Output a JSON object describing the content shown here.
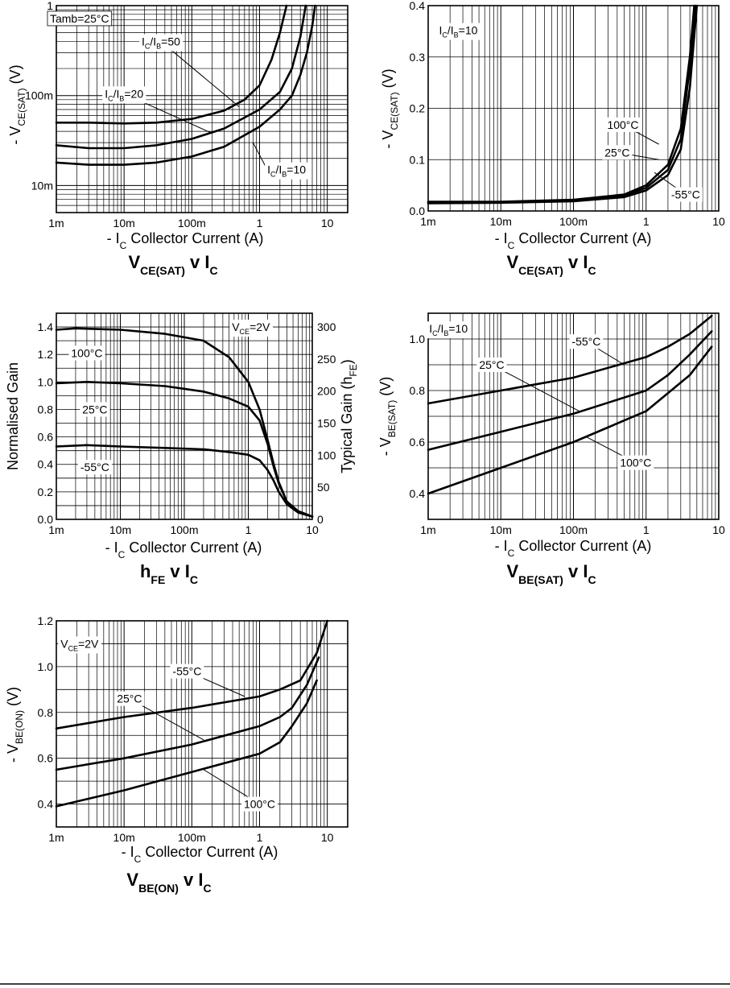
{
  "page": {
    "background": "#ffffff",
    "ink": "#000000"
  },
  "chart_data": [
    {
      "id": "c1",
      "type": "line",
      "title_main": "V",
      "title_sub": "CE(SAT)",
      "title_tail": "v I",
      "title_tail_sub": "C",
      "xlabel_prefix": "- I",
      "xlabel_sub": "C",
      "xlabel_text": "Collector Current (A)",
      "ylabel_prefix": "- V",
      "ylabel_sub": "CE(SAT)",
      "ylabel_text": "(V)",
      "x_scale": "log",
      "xlim": [
        0.001,
        20
      ],
      "y_scale": "log",
      "ylim": [
        0.005,
        1
      ],
      "x_ticks": [
        {
          "v": 0.001,
          "t": "1m"
        },
        {
          "v": 0.01,
          "t": "10m"
        },
        {
          "v": 0.1,
          "t": "100m"
        },
        {
          "v": 1,
          "t": "1"
        },
        {
          "v": 10,
          "t": "10"
        }
      ],
      "y_ticks": [
        {
          "v": 0.01,
          "t": "10m"
        },
        {
          "v": 0.1,
          "t": "100m"
        },
        {
          "v": 1,
          "t": "1"
        }
      ],
      "grid": true,
      "series": [
        {
          "name": "I/=50",
          "x": [
            0.001,
            0.003,
            0.01,
            0.03,
            0.1,
            0.3,
            0.6,
            1,
            1.5,
            2,
            2.5
          ],
          "y": [
            0.05,
            0.05,
            0.049,
            0.05,
            0.055,
            0.068,
            0.09,
            0.13,
            0.25,
            0.5,
            1.0
          ]
        },
        {
          "name": "I/=20",
          "x": [
            0.001,
            0.003,
            0.01,
            0.03,
            0.1,
            0.3,
            1,
            2,
            3,
            4,
            4.8
          ],
          "y": [
            0.028,
            0.026,
            0.026,
            0.028,
            0.033,
            0.043,
            0.07,
            0.11,
            0.2,
            0.45,
            1.0
          ]
        },
        {
          "name": "I/=10",
          "x": [
            0.001,
            0.003,
            0.01,
            0.03,
            0.1,
            0.3,
            1,
            2,
            3,
            4,
            5,
            6,
            6.6
          ],
          "y": [
            0.018,
            0.017,
            0.017,
            0.018,
            0.021,
            0.027,
            0.045,
            0.07,
            0.1,
            0.17,
            0.3,
            0.6,
            1.0
          ]
        }
      ],
      "annotations": [
        {
          "kind": "box",
          "text": "Tamb=25°C",
          "at": [
            0.0022,
            0.72
          ]
        },
        {
          "kind": "ratio",
          "a": "C",
          "b": "B",
          "val": "=50",
          "at": [
            0.035,
            0.4
          ],
          "to": [
            0.5,
            0.075
          ]
        },
        {
          "kind": "ratio",
          "a": "C",
          "b": "B",
          "val": "=20",
          "at": [
            0.01,
            0.105
          ],
          "to": [
            0.2,
            0.038
          ]
        },
        {
          "kind": "ratio",
          "a": "C",
          "b": "B",
          "val": "=10",
          "at": [
            1.3,
            0.015
          ],
          "to": [
            0.8,
            0.03
          ],
          "anchor": "start"
        }
      ]
    },
    {
      "id": "c2",
      "type": "line",
      "title_main": "V",
      "title_sub": "CE(SAT)",
      "title_tail": "v I",
      "title_tail_sub": "C",
      "xlabel_prefix": "- I",
      "xlabel_sub": "C",
      "xlabel_text": "Collector Current (A)",
      "ylabel_prefix": "- V",
      "ylabel_sub": "CE(SAT)",
      "ylabel_text": "(V)",
      "x_scale": "log",
      "xlim": [
        0.001,
        10
      ],
      "y_scale": "linear",
      "ylim": [
        0,
        0.4
      ],
      "x_ticks": [
        {
          "v": 0.001,
          "t": "1m"
        },
        {
          "v": 0.01,
          "t": "10m"
        },
        {
          "v": 0.1,
          "t": "100m"
        },
        {
          "v": 1,
          "t": "1"
        },
        {
          "v": 10,
          "t": "10"
        }
      ],
      "y_ticks": [
        {
          "v": 0,
          "t": "0.0"
        },
        {
          "v": 0.1,
          "t": "0.1"
        },
        {
          "v": 0.2,
          "t": "0.2"
        },
        {
          "v": 0.3,
          "t": "0.3"
        },
        {
          "v": 0.4,
          "t": "0.4"
        }
      ],
      "y_minor": [],
      "grid": true,
      "series": [
        {
          "name": "100°C",
          "x": [
            0.001,
            0.01,
            0.1,
            0.5,
            1,
            2,
            3,
            4,
            4.6
          ],
          "y": [
            0.018,
            0.018,
            0.022,
            0.032,
            0.05,
            0.09,
            0.16,
            0.3,
            0.4
          ]
        },
        {
          "name": "25°C",
          "x": [
            0.001,
            0.01,
            0.1,
            0.5,
            1,
            2,
            3,
            4,
            4.8
          ],
          "y": [
            0.017,
            0.017,
            0.021,
            0.03,
            0.045,
            0.08,
            0.14,
            0.28,
            0.4
          ]
        },
        {
          "name": "-55°C",
          "x": [
            0.001,
            0.01,
            0.1,
            0.5,
            1,
            2,
            3,
            4,
            5
          ],
          "y": [
            0.015,
            0.016,
            0.019,
            0.027,
            0.04,
            0.07,
            0.12,
            0.24,
            0.4
          ]
        }
      ],
      "annotations": [
        {
          "kind": "ratio",
          "a": "C",
          "b": "B",
          "val": "=10",
          "at": [
            0.0026,
            0.352
          ]
        },
        {
          "kind": "text",
          "text": "100°C",
          "at": [
            0.48,
            0.168
          ],
          "to": [
            1.5,
            0.13
          ]
        },
        {
          "kind": "text",
          "text": "25°C",
          "at": [
            0.4,
            0.114
          ],
          "to": [
            1.5,
            0.1
          ]
        },
        {
          "kind": "text",
          "text": "-55°C",
          "at": [
            3.5,
            0.032
          ],
          "to": [
            1.3,
            0.075
          ]
        }
      ]
    },
    {
      "id": "c3",
      "type": "line",
      "title_main": "h",
      "title_sub": "FE",
      "title_tail": "v I",
      "title_tail_sub": "C",
      "xlabel_prefix": "- I",
      "xlabel_sub": "C",
      "xlabel_text": "Collector Current (A)",
      "ylabel_text": "Normalised Gain",
      "y2label_prefix": "Typical Gain (h",
      "y2label_sub": "FE",
      "y2label_suffix": ")",
      "x_scale": "log",
      "xlim": [
        0.001,
        10
      ],
      "y_scale": "linear",
      "ylim": [
        0,
        1.5
      ],
      "y2lim": [
        0,
        321.4
      ],
      "x_ticks": [
        {
          "v": 0.001,
          "t": "1m"
        },
        {
          "v": 0.01,
          "t": "10m"
        },
        {
          "v": 0.1,
          "t": "100m"
        },
        {
          "v": 1,
          "t": "1"
        },
        {
          "v": 10,
          "t": "10"
        }
      ],
      "y_ticks": [
        {
          "v": 0,
          "t": "0.0"
        },
        {
          "v": 0.2,
          "t": "0.2"
        },
        {
          "v": 0.4,
          "t": "0.4"
        },
        {
          "v": 0.6,
          "t": "0.6"
        },
        {
          "v": 0.8,
          "t": "0.8"
        },
        {
          "v": 1.0,
          "t": "1.0"
        },
        {
          "v": 1.2,
          "t": "1.2"
        },
        {
          "v": 1.4,
          "t": "1.4"
        }
      ],
      "y2_ticks": [
        {
          "v": 0,
          "t": "0"
        },
        {
          "v": 50,
          "t": "50"
        },
        {
          "v": 100,
          "t": "100"
        },
        {
          "v": 150,
          "t": "150"
        },
        {
          "v": 200,
          "t": "200"
        },
        {
          "v": 250,
          "t": "250"
        },
        {
          "v": 300,
          "t": "300"
        }
      ],
      "y_minor_step": 0.1,
      "grid": true,
      "series": [
        {
          "name": "100°C",
          "x": [
            0.001,
            0.002,
            0.01,
            0.05,
            0.2,
            0.5,
            1,
            1.5,
            2,
            2.5,
            3,
            4,
            6,
            10
          ],
          "y": [
            1.38,
            1.39,
            1.38,
            1.35,
            1.3,
            1.18,
            1.0,
            0.8,
            0.58,
            0.4,
            0.27,
            0.13,
            0.06,
            0.02
          ]
        },
        {
          "name": "25°C",
          "x": [
            0.001,
            0.003,
            0.01,
            0.05,
            0.2,
            0.5,
            1,
            1.5,
            2,
            2.5,
            3,
            4,
            6,
            10
          ],
          "y": [
            0.99,
            1.0,
            0.99,
            0.97,
            0.93,
            0.88,
            0.82,
            0.72,
            0.55,
            0.38,
            0.26,
            0.13,
            0.06,
            0.02
          ]
        },
        {
          "name": "-55°C",
          "x": [
            0.001,
            0.003,
            0.01,
            0.05,
            0.2,
            0.5,
            1,
            1.5,
            2,
            2.5,
            3,
            4,
            6,
            10
          ],
          "y": [
            0.53,
            0.54,
            0.53,
            0.52,
            0.51,
            0.49,
            0.47,
            0.43,
            0.36,
            0.28,
            0.2,
            0.11,
            0.05,
            0.02
          ]
        }
      ],
      "annotations": [
        {
          "kind": "vsub",
          "a": "CE",
          "val": "=2V",
          "at": [
            1.1,
            1.4
          ]
        },
        {
          "kind": "text",
          "text": "100°C",
          "at": [
            0.003,
            1.21
          ]
        },
        {
          "kind": "text",
          "text": "25°C",
          "at": [
            0.004,
            0.8
          ]
        },
        {
          "kind": "text",
          "text": "-55°C",
          "at": [
            0.004,
            0.38
          ]
        }
      ]
    },
    {
      "id": "c4",
      "type": "line",
      "title_main": "V",
      "title_sub": "BE(SAT)",
      "title_tail": "v I",
      "title_tail_sub": "C",
      "xlabel_prefix": "- I",
      "xlabel_sub": "C",
      "xlabel_text": "Collector Current (A)",
      "ylabel_prefix": "- V",
      "ylabel_sub": "BE(SAT)",
      "ylabel_text": "(V)",
      "x_scale": "log",
      "xlim": [
        0.001,
        10
      ],
      "y_scale": "linear",
      "ylim": [
        0.3,
        1.1
      ],
      "x_ticks": [
        {
          "v": 0.001,
          "t": "1m"
        },
        {
          "v": 0.01,
          "t": "10m"
        },
        {
          "v": 0.1,
          "t": "100m"
        },
        {
          "v": 1,
          "t": "1"
        },
        {
          "v": 10,
          "t": "10"
        }
      ],
      "y_ticks": [
        {
          "v": 0.4,
          "t": "0.4"
        },
        {
          "v": 0.6,
          "t": "0.6"
        },
        {
          "v": 0.8,
          "t": "0.8"
        },
        {
          "v": 1.0,
          "t": "1.0"
        }
      ],
      "y_minor_step": 0.1,
      "grid": true,
      "series": [
        {
          "name": "-55°C",
          "x": [
            0.001,
            0.01,
            0.1,
            1,
            2,
            4,
            8
          ],
          "y": [
            0.75,
            0.8,
            0.85,
            0.93,
            0.97,
            1.02,
            1.09
          ]
        },
        {
          "name": "25°C",
          "x": [
            0.001,
            0.01,
            0.1,
            1,
            2,
            4,
            8
          ],
          "y": [
            0.57,
            0.64,
            0.71,
            0.8,
            0.86,
            0.94,
            1.03
          ]
        },
        {
          "name": "100°C",
          "x": [
            0.001,
            0.01,
            0.1,
            1,
            2,
            4,
            8
          ],
          "y": [
            0.4,
            0.5,
            0.6,
            0.72,
            0.79,
            0.86,
            0.97
          ]
        }
      ],
      "annotations": [
        {
          "kind": "ratio",
          "a": "C",
          "b": "B",
          "val": "=10",
          "at": [
            0.0019,
            1.04
          ]
        },
        {
          "kind": "text",
          "text": "-55°C",
          "at": [
            0.15,
            0.99
          ],
          "to": [
            0.5,
            0.9
          ]
        },
        {
          "kind": "text",
          "text": "25°C",
          "at": [
            0.0075,
            0.9
          ],
          "to": [
            0.12,
            0.72
          ]
        },
        {
          "kind": "text",
          "text": "100°C",
          "at": [
            0.72,
            0.52
          ],
          "to": [
            0.15,
            0.62
          ]
        }
      ]
    },
    {
      "id": "c5",
      "type": "line",
      "title_main": "V",
      "title_sub": "BE(ON)",
      "title_tail": "v I",
      "title_tail_sub": "C",
      "xlabel_prefix": "- I",
      "xlabel_sub": "C",
      "xlabel_text": "Collector Current (A)",
      "ylabel_prefix": "- V",
      "ylabel_sub": "BE(ON)",
      "ylabel_text": "(V)",
      "x_scale": "log",
      "xlim": [
        0.001,
        20
      ],
      "y_scale": "linear",
      "ylim": [
        0.3,
        1.2
      ],
      "x_ticks": [
        {
          "v": 0.001,
          "t": "1m"
        },
        {
          "v": 0.01,
          "t": "10m"
        },
        {
          "v": 0.1,
          "t": "100m"
        },
        {
          "v": 1,
          "t": "1"
        },
        {
          "v": 10,
          "t": "10"
        }
      ],
      "y_ticks": [
        {
          "v": 0.4,
          "t": "0.4"
        },
        {
          "v": 0.6,
          "t": "0.6"
        },
        {
          "v": 0.8,
          "t": "0.8"
        },
        {
          "v": 1.0,
          "t": "1.0"
        },
        {
          "v": 1.2,
          "t": "1.2"
        }
      ],
      "y_minor_step": 0.1,
      "grid": true,
      "series": [
        {
          "name": "-55°C",
          "x": [
            0.001,
            0.01,
            0.1,
            1,
            2,
            4,
            7,
            10
          ],
          "y": [
            0.73,
            0.78,
            0.82,
            0.87,
            0.9,
            0.94,
            1.06,
            1.2
          ]
        },
        {
          "name": "25°C",
          "x": [
            0.001,
            0.01,
            0.1,
            1,
            2,
            3,
            5,
            7.5
          ],
          "y": [
            0.55,
            0.6,
            0.66,
            0.74,
            0.78,
            0.82,
            0.92,
            1.04
          ]
        },
        {
          "name": "100°C",
          "x": [
            0.001,
            0.01,
            0.1,
            1,
            2,
            3,
            5,
            7
          ],
          "y": [
            0.39,
            0.46,
            0.54,
            0.62,
            0.67,
            0.74,
            0.84,
            0.94
          ]
        }
      ],
      "annotations": [
        {
          "kind": "vsub",
          "a": "CE",
          "val": "=2V",
          "at": [
            0.0022,
            1.1
          ]
        },
        {
          "kind": "text",
          "text": "-55°C",
          "at": [
            0.085,
            0.98
          ],
          "to": [
            0.6,
            0.87
          ]
        },
        {
          "kind": "text",
          "text": "25°C",
          "at": [
            0.012,
            0.86
          ],
          "to": [
            0.15,
            0.68
          ]
        },
        {
          "kind": "text",
          "text": "100°C",
          "at": [
            1.0,
            0.4
          ],
          "to": [
            0.15,
            0.55
          ]
        }
      ]
    }
  ]
}
